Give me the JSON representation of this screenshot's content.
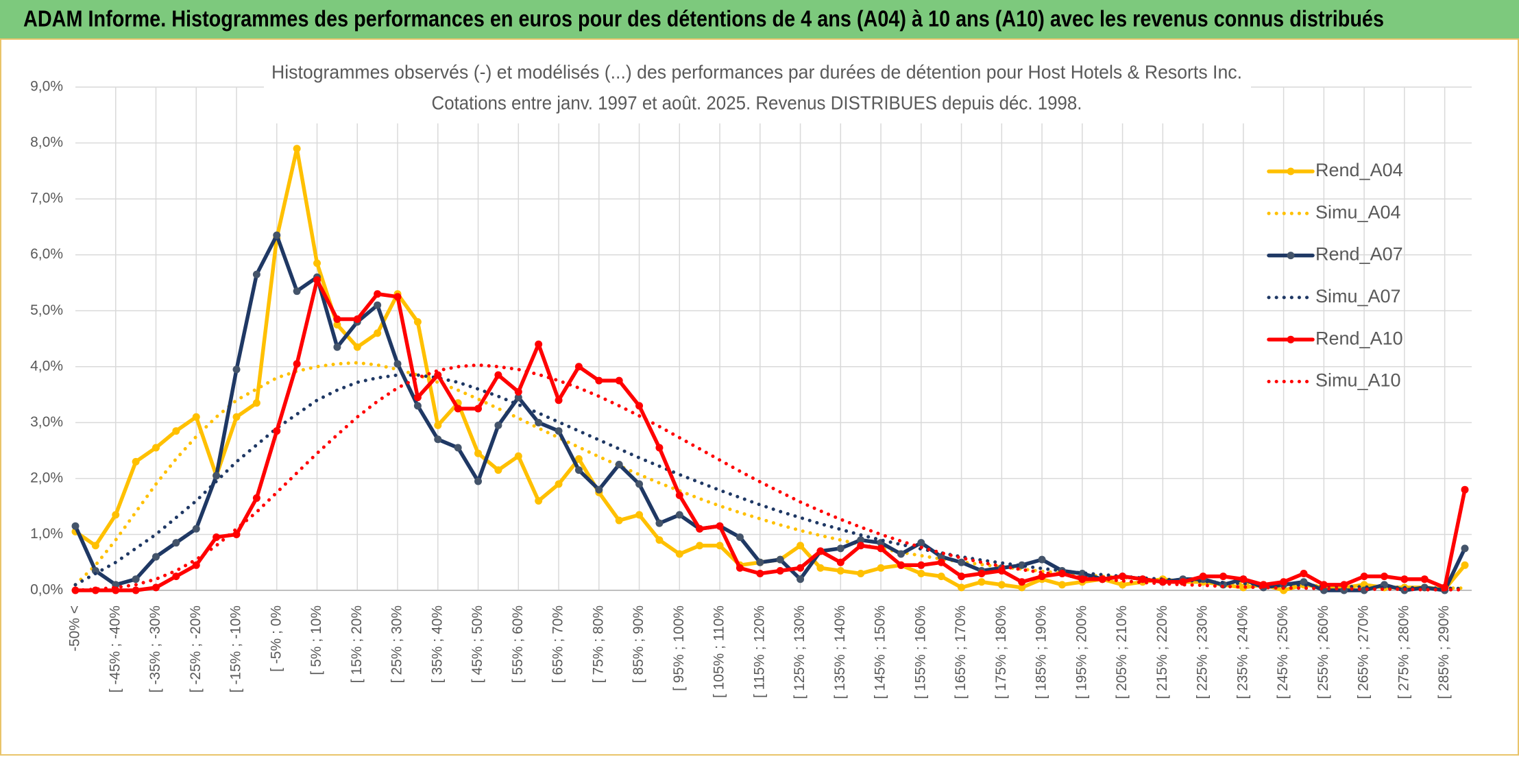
{
  "header": {
    "title": "ADAM Informe. Histogrammes des performances en euros pour des détentions de 4 ans (A04) à 10 ans (A10) avec les revenus connus distribués"
  },
  "chart_data": {
    "type": "line",
    "title": "Histogrammes observés (-) et modélisés (...) des performances par durées de détention pour Host Hotels & Resorts Inc.",
    "subtitle": "Cotations entre janv. 1997 et août. 2025. Revenus DISTRIBUES depuis déc. 1998.",
    "categories": [
      "-50% <",
      null,
      "[ -45% ; -40%",
      null,
      "[ -35% ; -30%",
      null,
      "[ -25% ; -20%",
      null,
      "[ -15% ; -10%",
      null,
      "[ -5% ; 0%",
      null,
      "[ 5% ; 10%",
      null,
      "[ 15% ; 20%",
      null,
      "[ 25% ; 30%",
      null,
      "[ 35% ; 40%",
      null,
      "[ 45% ; 50%",
      null,
      "[ 55% ; 60%",
      null,
      "[ 65% ; 70%",
      null,
      "[ 75% ; 80%",
      null,
      "[ 85% ; 90%",
      null,
      "[ 95% ; 100%",
      null,
      "[ 105% ; 110%",
      null,
      "[ 115% ; 120%",
      null,
      "[ 125% ; 130%",
      null,
      "[ 135% ; 140%",
      null,
      "[ 145% ; 150%",
      null,
      "[ 155% ; 160%",
      null,
      "[ 165% ; 170%",
      null,
      "[ 175% ; 180%",
      null,
      "[ 185% ; 190%",
      null,
      "[ 195% ; 200%",
      null,
      "[ 205% ; 210%",
      null,
      "[ 215% ; 220%",
      null,
      "[ 225% ; 230%",
      null,
      "[ 235% ; 240%",
      null,
      "[ 245% ; 250%",
      null,
      "[ 255% ; 260%",
      null,
      "[ 265% ; 270%",
      null,
      "[ 275% ; 280%",
      null,
      "[ 285% ; 290%",
      null
    ],
    "ylim": [
      0,
      9
    ],
    "yticks": [
      {
        "value": 0,
        "label": "0,0%"
      },
      {
        "value": 1,
        "label": "1,0%"
      },
      {
        "value": 2,
        "label": "2,0%"
      },
      {
        "value": 3,
        "label": "3,0%"
      },
      {
        "value": 4,
        "label": "4,0%"
      },
      {
        "value": 5,
        "label": "5,0%"
      },
      {
        "value": 6,
        "label": "6,0%"
      },
      {
        "value": 7,
        "label": "7,0%"
      },
      {
        "value": 8,
        "label": "8,0%"
      },
      {
        "value": 9,
        "label": "9,0%"
      }
    ],
    "grid": true,
    "legend": "right",
    "series": [
      {
        "name": "Rend_A04",
        "color": "#FFC000",
        "style": "solid",
        "markers": true,
        "values": [
          1.05,
          0.8,
          1.35,
          2.3,
          2.55,
          2.85,
          3.1,
          2.05,
          3.1,
          3.35,
          6.3,
          7.9,
          5.85,
          4.75,
          4.35,
          4.6,
          5.3,
          4.8,
          2.95,
          3.35,
          2.45,
          2.15,
          2.4,
          1.6,
          1.9,
          2.35,
          1.75,
          1.25,
          1.35,
          0.9,
          0.65,
          0.8,
          0.8,
          0.45,
          0.5,
          0.55,
          0.8,
          0.4,
          0.35,
          0.3,
          0.4,
          0.45,
          0.3,
          0.25,
          0.05,
          0.15,
          0.1,
          0.05,
          0.2,
          0.1,
          0.15,
          0.2,
          0.1,
          0.15,
          0.2,
          0.15,
          0.15,
          0.1,
          0.05,
          0.1,
          0.0,
          0.1,
          0.05,
          0.05,
          0.1,
          0.05,
          0.05,
          0.05,
          0.02,
          0.45
        ]
      },
      {
        "name": "Simu_A04",
        "color": "#FFC000",
        "style": "dotted",
        "markers": false,
        "values": [
          0.1,
          0.45,
          0.9,
          1.4,
          1.9,
          2.35,
          2.75,
          3.1,
          3.4,
          3.6,
          3.8,
          3.92,
          4.0,
          4.05,
          4.07,
          4.03,
          3.95,
          3.85,
          3.72,
          3.58,
          3.42,
          3.25,
          3.08,
          2.9,
          2.73,
          2.56,
          2.39,
          2.23,
          2.07,
          1.92,
          1.78,
          1.64,
          1.51,
          1.39,
          1.28,
          1.17,
          1.07,
          0.98,
          0.9,
          0.82,
          0.75,
          0.68,
          0.62,
          0.56,
          0.51,
          0.46,
          0.42,
          0.38,
          0.34,
          0.31,
          0.28,
          0.25,
          0.23,
          0.2,
          0.18,
          0.16,
          0.15,
          0.13,
          0.12,
          0.11,
          0.1,
          0.09,
          0.08,
          0.07,
          0.06,
          0.06,
          0.05,
          0.05,
          0.04,
          0.04
        ]
      },
      {
        "name": "Rend_A07",
        "color": "#1F3864",
        "style": "solid",
        "markers": true,
        "marker_color": "#44546A",
        "values": [
          1.15,
          0.35,
          0.1,
          0.2,
          0.6,
          0.85,
          1.1,
          2.05,
          3.95,
          5.65,
          6.35,
          5.35,
          5.6,
          4.35,
          4.8,
          5.1,
          4.05,
          3.3,
          2.7,
          2.55,
          1.95,
          2.95,
          3.45,
          3.0,
          2.85,
          2.15,
          1.8,
          2.25,
          1.9,
          1.2,
          1.35,
          1.1,
          1.15,
          0.95,
          0.5,
          0.55,
          0.2,
          0.7,
          0.75,
          0.9,
          0.85,
          0.65,
          0.85,
          0.6,
          0.5,
          0.35,
          0.4,
          0.45,
          0.55,
          0.35,
          0.3,
          0.2,
          0.25,
          0.2,
          0.15,
          0.2,
          0.2,
          0.1,
          0.2,
          0.05,
          0.1,
          0.15,
          0.0,
          0.0,
          0.0,
          0.1,
          0.0,
          0.05,
          0.0,
          0.75
        ]
      },
      {
        "name": "Simu_A07",
        "color": "#1F3864",
        "style": "dotted",
        "markers": false,
        "values": [
          0.1,
          0.3,
          0.5,
          0.75,
          1.0,
          1.3,
          1.6,
          1.95,
          2.3,
          2.6,
          2.9,
          3.15,
          3.4,
          3.58,
          3.72,
          3.8,
          3.85,
          3.85,
          3.8,
          3.72,
          3.6,
          3.47,
          3.32,
          3.17,
          3.01,
          2.85,
          2.69,
          2.53,
          2.37,
          2.22,
          2.07,
          1.93,
          1.79,
          1.66,
          1.53,
          1.41,
          1.3,
          1.19,
          1.09,
          0.99,
          0.9,
          0.82,
          0.74,
          0.67,
          0.6,
          0.54,
          0.49,
          0.44,
          0.39,
          0.35,
          0.31,
          0.28,
          0.25,
          0.22,
          0.2,
          0.18,
          0.16,
          0.14,
          0.12,
          0.11,
          0.1,
          0.09,
          0.08,
          0.07,
          0.06,
          0.05,
          0.05,
          0.04,
          0.04,
          0.03
        ]
      },
      {
        "name": "Rend_A10",
        "color": "#FF0000",
        "style": "solid",
        "markers": true,
        "values": [
          0.0,
          0.0,
          0.0,
          0.0,
          0.05,
          0.25,
          0.45,
          0.95,
          1.0,
          1.65,
          2.85,
          4.05,
          5.55,
          4.85,
          4.85,
          5.3,
          5.25,
          3.45,
          3.85,
          3.25,
          3.25,
          3.85,
          3.55,
          4.4,
          3.4,
          4.0,
          3.75,
          3.75,
          3.3,
          2.55,
          1.7,
          1.1,
          1.15,
          0.4,
          0.3,
          0.35,
          0.4,
          0.7,
          0.5,
          0.8,
          0.75,
          0.45,
          0.45,
          0.5,
          0.25,
          0.3,
          0.35,
          0.15,
          0.25,
          0.3,
          0.2,
          0.2,
          0.25,
          0.2,
          0.15,
          0.15,
          0.25,
          0.25,
          0.2,
          0.1,
          0.15,
          0.3,
          0.1,
          0.1,
          0.25,
          0.25,
          0.2,
          0.2,
          0.05,
          1.8
        ]
      },
      {
        "name": "Simu_A10",
        "color": "#FF0000",
        "style": "dotted",
        "markers": false,
        "values": [
          0.0,
          0.02,
          0.05,
          0.1,
          0.2,
          0.35,
          0.55,
          0.8,
          1.1,
          1.4,
          1.75,
          2.1,
          2.45,
          2.78,
          3.1,
          3.38,
          3.62,
          3.8,
          3.93,
          4.0,
          4.03,
          4.0,
          3.95,
          3.86,
          3.75,
          3.62,
          3.47,
          3.3,
          3.12,
          2.93,
          2.73,
          2.53,
          2.33,
          2.13,
          1.94,
          1.76,
          1.58,
          1.42,
          1.27,
          1.13,
          1.0,
          0.88,
          0.77,
          0.67,
          0.58,
          0.5,
          0.43,
          0.37,
          0.32,
          0.27,
          0.23,
          0.2,
          0.17,
          0.14,
          0.12,
          0.1,
          0.09,
          0.07,
          0.06,
          0.05,
          0.04,
          0.04,
          0.03,
          0.03,
          0.02,
          0.02,
          0.02,
          0.01,
          0.01,
          0.01
        ]
      }
    ]
  }
}
